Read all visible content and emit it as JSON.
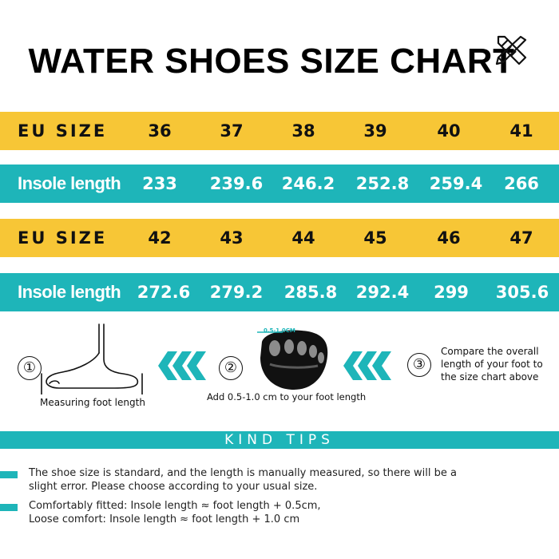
{
  "title": "WATER SHOES SIZE CHART",
  "table": {
    "rows": [
      {
        "label": "EU SIZE",
        "values": [
          "36",
          "37",
          "38",
          "39",
          "40",
          "41"
        ],
        "color": "#f7c636"
      },
      {
        "label": "Insole length",
        "values": [
          "233",
          "239.6",
          "246.2",
          "252.8",
          "259.4",
          "266"
        ],
        "color": "#1eb5b9"
      },
      {
        "label": "EU SIZE",
        "values": [
          "42",
          "43",
          "44",
          "45",
          "46",
          "47"
        ],
        "color": "#f7c636"
      },
      {
        "label": "Insole length",
        "values": [
          "272.6",
          "279.2",
          "285.8",
          "292.4",
          "299",
          "305.6"
        ],
        "color": "#1eb5b9"
      }
    ]
  },
  "steps": {
    "step1": {
      "num": "①",
      "caption": "Measuring foot length",
      "icon": "foot-measure-icon"
    },
    "step2": {
      "num": "②",
      "caption": "Add 0.5-1.0 cm to your foot length",
      "badge": "0.5-1.0CM",
      "icon": "shoe-sole-icon"
    },
    "step3": {
      "num": "③",
      "caption_lines": [
        "Compare the overall",
        "length of your foot to",
        "the size chart above"
      ]
    }
  },
  "kind_tips": {
    "heading": "KIND TIPS",
    "tip1": [
      "The shoe size is standard, and the length is manually measured, so there will be a",
      "slight error. Please choose according to your usual size."
    ],
    "tip2": [
      "Comfortably fitted: Insole length ≈ foot length + 0.5cm,",
      "Loose comfort: Insole length ≈ foot length + 1.0 cm"
    ]
  },
  "colors": {
    "accent_yellow": "#f7c636",
    "accent_teal": "#1eb5b9"
  }
}
